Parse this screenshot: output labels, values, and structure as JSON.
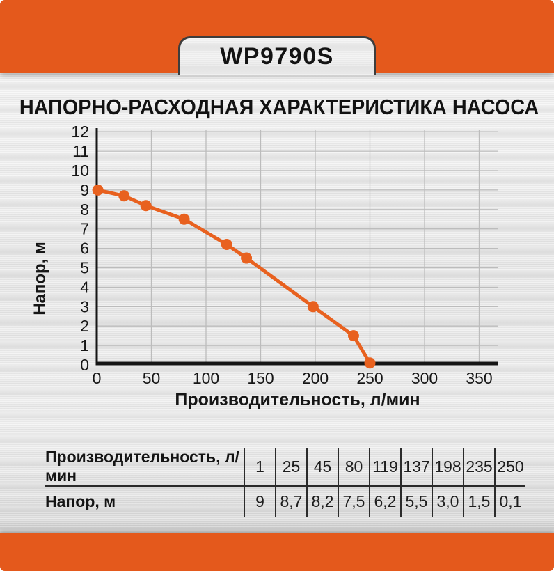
{
  "colors": {
    "orange": "#E4591C",
    "curve": "#E8611F",
    "grid": "#BCBCBC",
    "axis": "#161616",
    "tab_border": "#3D3D3D"
  },
  "header": {
    "model": "WP9790S"
  },
  "title": "НАПОРНО-РАСХОДНАЯ ХАРАКТЕРИСТИКА НАСОСА",
  "chart_data": {
    "type": "line",
    "x": [
      1,
      25,
      45,
      80,
      119,
      137,
      198,
      235,
      250
    ],
    "y": [
      9,
      8.7,
      8.2,
      7.5,
      6.2,
      5.5,
      3.0,
      1.5,
      0.1
    ],
    "title": "",
    "xlabel": "Производительность, л/мин",
    "ylabel": "Напор, м",
    "xlim": [
      0,
      368
    ],
    "ylim": [
      0,
      12
    ],
    "xticks": [
      0,
      50,
      100,
      150,
      200,
      250,
      300,
      350
    ],
    "yticks": [
      0,
      1,
      2,
      3,
      4,
      5,
      6,
      7,
      8,
      9,
      10,
      11,
      12
    ],
    "grid": true,
    "legend": false,
    "line_color": "#E8611F",
    "marker": "circle"
  },
  "table": {
    "header_row": {
      "label": "Производительность, л/мин",
      "values": [
        "1",
        "25",
        "45",
        "80",
        "119",
        "137",
        "198",
        "235",
        "250"
      ]
    },
    "data_row": {
      "label": "Напор, м",
      "values": [
        "9",
        "8,7",
        "8,2",
        "7,5",
        "6,2",
        "5,5",
        "3,0",
        "1,5",
        "0,1"
      ]
    }
  }
}
